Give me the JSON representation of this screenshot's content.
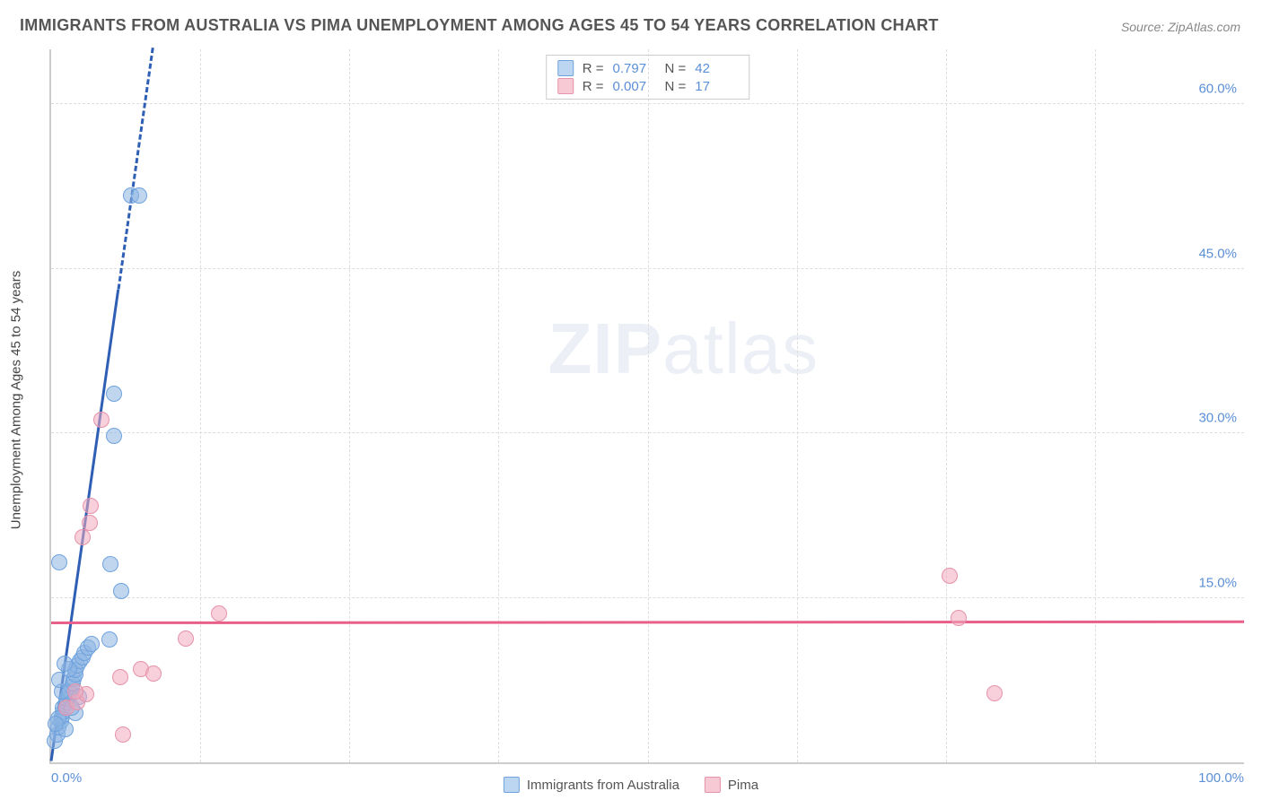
{
  "title": "IMMIGRANTS FROM AUSTRALIA VS PIMA UNEMPLOYMENT AMONG AGES 45 TO 54 YEARS CORRELATION CHART",
  "source_label": "Source: ",
  "source_value": "ZipAtlas.com",
  "ylabel": "Unemployment Among Ages 45 to 54 years",
  "watermark_a": "ZIP",
  "watermark_b": "atlas",
  "legend_top": {
    "rows": [
      {
        "swatch_fill": "#bcd5f0",
        "swatch_stroke": "#6ea2de",
        "r_label": "R  =",
        "r_value": "0.797",
        "n_label": "N  =",
        "n_value": "42"
      },
      {
        "swatch_fill": "#f6c9d4",
        "swatch_stroke": "#e692aa",
        "r_label": "R  =",
        "r_value": "0.007",
        "n_label": "N  =",
        "n_value": "17"
      }
    ]
  },
  "legend_bottom": {
    "items": [
      {
        "fill": "#bcd5f0",
        "stroke": "#6ea2de",
        "label": "Immigrants from Australia"
      },
      {
        "fill": "#f6c9d4",
        "stroke": "#e692aa",
        "label": "Pima"
      }
    ]
  },
  "chart": {
    "type": "scatter",
    "xlim": [
      0,
      100
    ],
    "ylim": [
      0,
      65
    ],
    "xticks": [
      {
        "value": 0,
        "label": "0.0%",
        "align": "left"
      },
      {
        "value": 100,
        "label": "100.0%",
        "align": "right"
      }
    ],
    "yticks": [
      {
        "value": 15,
        "label": "15.0%"
      },
      {
        "value": 30,
        "label": "30.0%"
      },
      {
        "value": 45,
        "label": "45.0%"
      },
      {
        "value": 60,
        "label": "60.0%"
      }
    ],
    "grid_h": [
      15,
      30,
      45,
      60
    ],
    "grid_v": [
      12.5,
      25,
      37.5,
      50,
      62.5,
      75,
      87.5
    ],
    "grid_color": "#dddddd",
    "series": [
      {
        "name": "Immigrants from Australia",
        "color_fill": "rgba(140,180,225,0.55)",
        "color_stroke": "#6ea2de",
        "marker_radius": 9,
        "trend": {
          "x1": 0,
          "y1": 0,
          "x2": 8.5,
          "y2": 65,
          "solid_to_y": 43,
          "color": "#2f5fb5",
          "width": 3
        },
        "points": [
          {
            "x": 0.3,
            "y": 2.0
          },
          {
            "x": 0.5,
            "y": 2.5
          },
          {
            "x": 0.6,
            "y": 3.2
          },
          {
            "x": 0.8,
            "y": 3.8
          },
          {
            "x": 0.9,
            "y": 4.2
          },
          {
            "x": 1.0,
            "y": 4.6
          },
          {
            "x": 1.0,
            "y": 5.0
          },
          {
            "x": 1.2,
            "y": 5.2
          },
          {
            "x": 1.3,
            "y": 5.5
          },
          {
            "x": 1.3,
            "y": 5.8
          },
          {
            "x": 1.5,
            "y": 6.0
          },
          {
            "x": 1.5,
            "y": 6.3
          },
          {
            "x": 1.6,
            "y": 6.5
          },
          {
            "x": 1.7,
            "y": 6.9
          },
          {
            "x": 1.8,
            "y": 7.2
          },
          {
            "x": 1.9,
            "y": 7.6
          },
          {
            "x": 2.0,
            "y": 8.0
          },
          {
            "x": 2.0,
            "y": 8.4
          },
          {
            "x": 2.2,
            "y": 8.8
          },
          {
            "x": 2.4,
            "y": 9.2
          },
          {
            "x": 2.6,
            "y": 9.6
          },
          {
            "x": 2.8,
            "y": 10.0
          },
          {
            "x": 3.1,
            "y": 10.5
          },
          {
            "x": 3.4,
            "y": 10.8
          },
          {
            "x": 2.0,
            "y": 4.5
          },
          {
            "x": 0.9,
            "y": 6.5
          },
          {
            "x": 0.7,
            "y": 7.5
          },
          {
            "x": 1.5,
            "y": 8.5
          },
          {
            "x": 1.1,
            "y": 9.0
          },
          {
            "x": 4.9,
            "y": 11.2
          },
          {
            "x": 5.9,
            "y": 15.6
          },
          {
            "x": 5.0,
            "y": 18.1
          },
          {
            "x": 0.7,
            "y": 18.2
          },
          {
            "x": 5.3,
            "y": 29.8
          },
          {
            "x": 5.3,
            "y": 33.6
          },
          {
            "x": 6.7,
            "y": 51.7
          },
          {
            "x": 7.4,
            "y": 51.7
          },
          {
            "x": 1.2,
            "y": 3.0
          },
          {
            "x": 0.6,
            "y": 4.0
          },
          {
            "x": 2.3,
            "y": 6.0
          },
          {
            "x": 1.7,
            "y": 5.0
          },
          {
            "x": 0.4,
            "y": 3.5
          }
        ]
      },
      {
        "name": "Pima",
        "color_fill": "rgba(240,170,190,0.55)",
        "color_stroke": "#e692aa",
        "marker_radius": 9,
        "trend": {
          "x1": 0,
          "y1": 12.6,
          "x2": 100,
          "y2": 12.7,
          "color": "#e85f8a",
          "width": 3
        },
        "points": [
          {
            "x": 1.3,
            "y": 5.0
          },
          {
            "x": 2.2,
            "y": 5.5
          },
          {
            "x": 2.9,
            "y": 6.2
          },
          {
            "x": 6.0,
            "y": 2.5
          },
          {
            "x": 5.8,
            "y": 7.8
          },
          {
            "x": 7.5,
            "y": 8.5
          },
          {
            "x": 8.6,
            "y": 8.1
          },
          {
            "x": 11.3,
            "y": 11.3
          },
          {
            "x": 14.1,
            "y": 13.6
          },
          {
            "x": 2.6,
            "y": 20.5
          },
          {
            "x": 3.2,
            "y": 21.8
          },
          {
            "x": 3.3,
            "y": 23.4
          },
          {
            "x": 4.2,
            "y": 31.2
          },
          {
            "x": 75.3,
            "y": 17.0
          },
          {
            "x": 76.1,
            "y": 13.2
          },
          {
            "x": 79.1,
            "y": 6.3
          },
          {
            "x": 2.0,
            "y": 6.5
          }
        ]
      }
    ]
  }
}
